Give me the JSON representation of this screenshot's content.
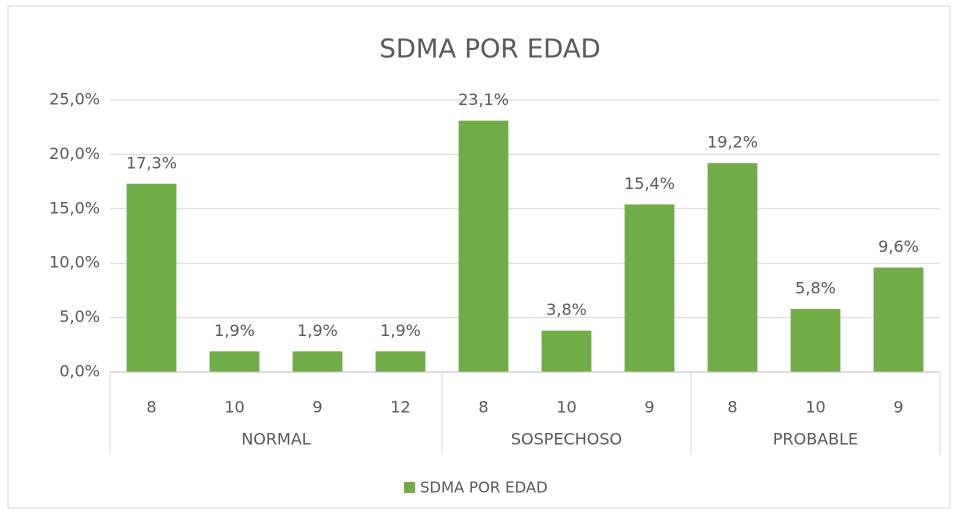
{
  "chart_data": {
    "type": "bar",
    "title": "SDMA POR EDAD",
    "groups": [
      {
        "label": "NORMAL",
        "categories": [
          "8",
          "10",
          "9",
          "12"
        ]
      },
      {
        "label": "SOSPECHOSO",
        "categories": [
          "8",
          "10",
          "9"
        ]
      },
      {
        "label": "PROBABLE",
        "categories": [
          "8",
          "10",
          "9"
        ]
      }
    ],
    "series": [
      {
        "name": "SDMA POR EDAD",
        "color": "#70ad47",
        "values": [
          17.3,
          1.9,
          1.9,
          1.9,
          23.1,
          3.8,
          15.4,
          19.2,
          5.8,
          9.6
        ],
        "value_labels": [
          "17,3%",
          "1,9%",
          "1,9%",
          "1,9%",
          "23,1%",
          "3,8%",
          "15,4%",
          "19,2%",
          "5,8%",
          "9,6%"
        ]
      }
    ],
    "ylim": [
      0,
      25
    ],
    "yticks": [
      {
        "value": 0,
        "label": "0,0%"
      },
      {
        "value": 5,
        "label": "5,0%"
      },
      {
        "value": 10,
        "label": "10,0%"
      },
      {
        "value": 15,
        "label": "15,0%"
      },
      {
        "value": 20,
        "label": "20,0%"
      },
      {
        "value": 25,
        "label": "25,0%"
      }
    ],
    "grid": true,
    "legend": "bottom"
  }
}
